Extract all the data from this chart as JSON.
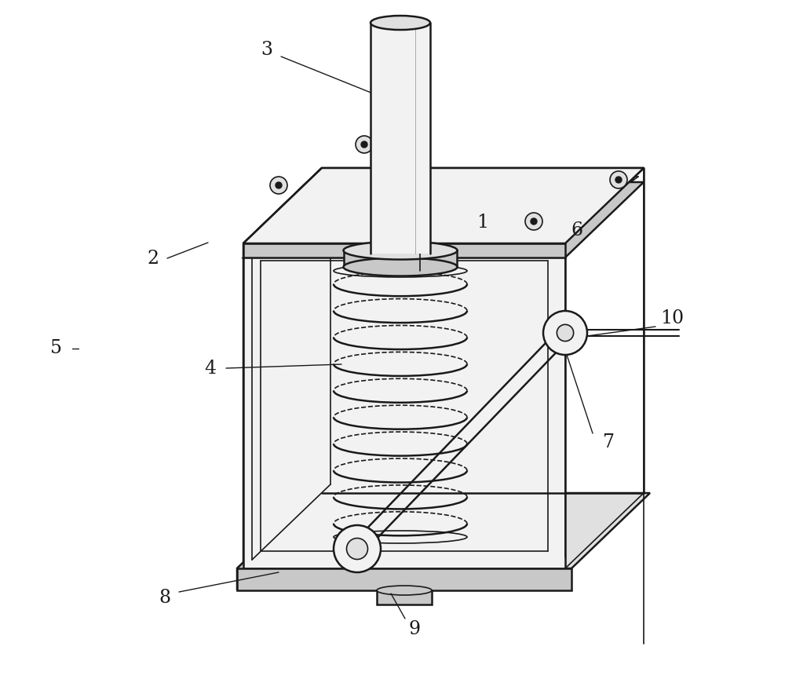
{
  "bg_color": "#ffffff",
  "line_color": "#1a1a1a",
  "lw_main": 1.8,
  "lw_thin": 1.2,
  "lw_label": 1.0,
  "label_fontsize": 17,
  "gray_light": "#f2f2f2",
  "gray_mid": "#e0e0e0",
  "gray_dark": "#c8c8c8",
  "gray_side": "#d8d8d8"
}
